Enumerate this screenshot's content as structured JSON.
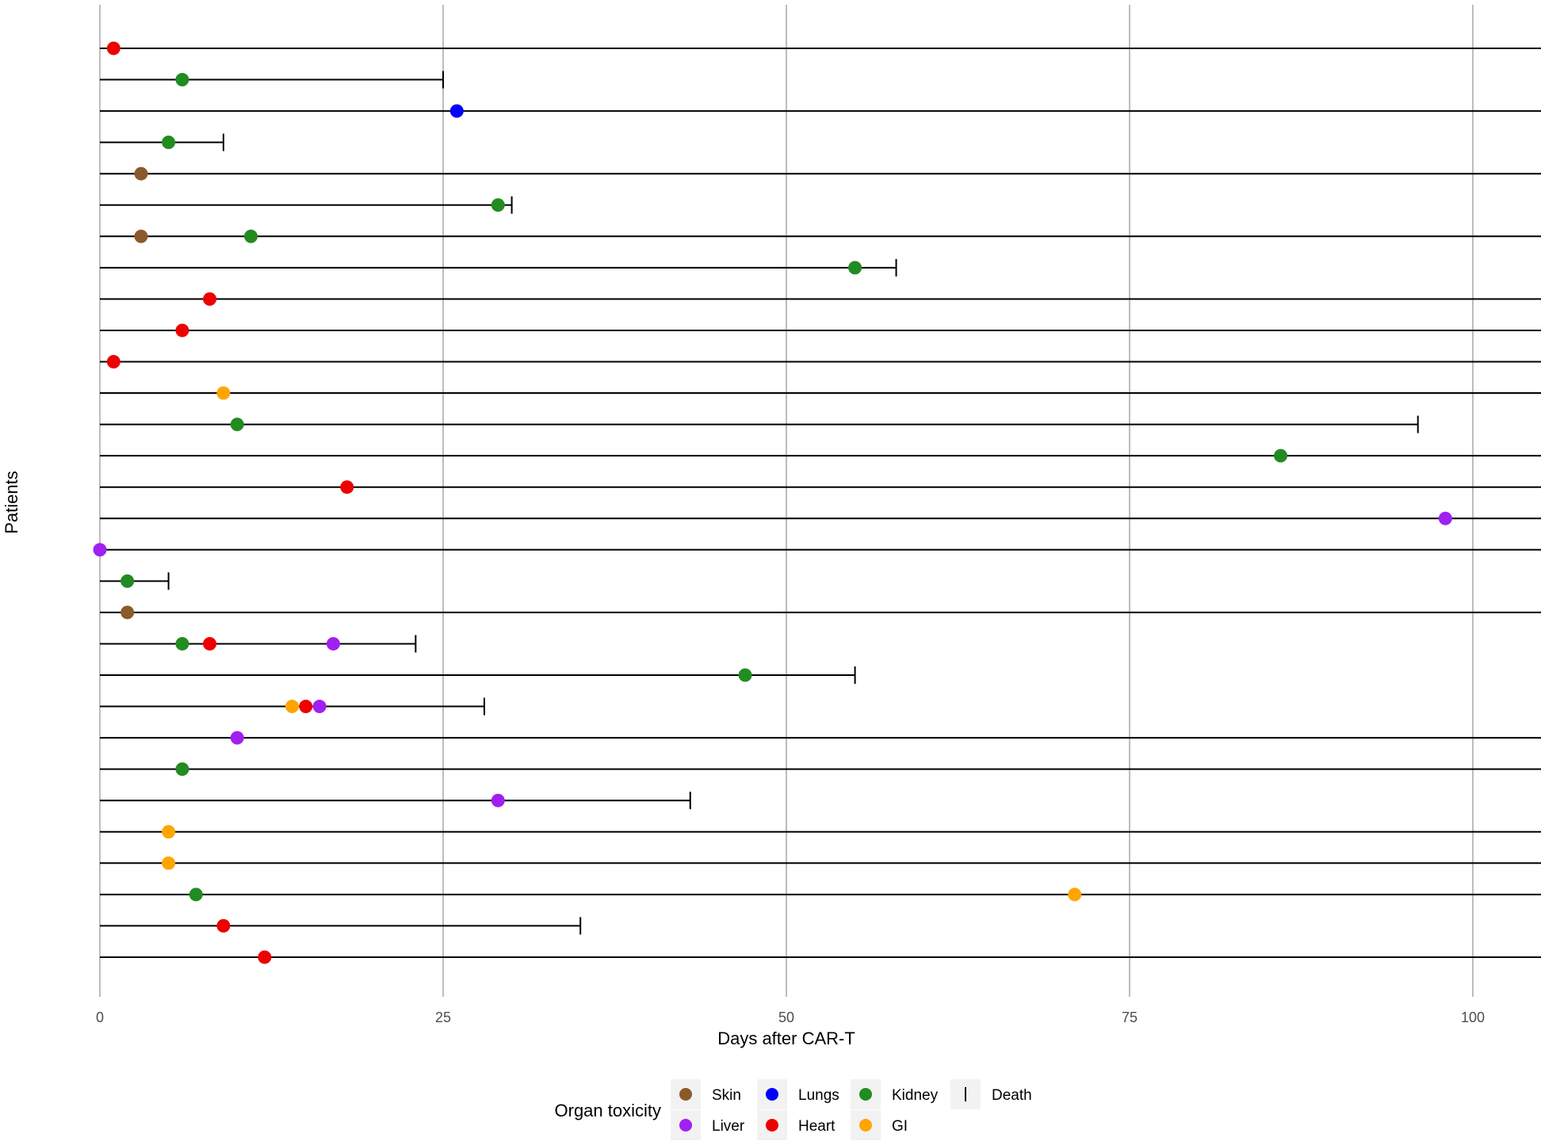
{
  "chart_data": {
    "type": "scatter",
    "title": "",
    "xlabel": "Days after CAR-T",
    "ylabel": "Patients",
    "xlim": [
      0,
      105
    ],
    "x_ticks": [
      0,
      25,
      50,
      75,
      100
    ],
    "grid": "vertical major gridlines",
    "legend": {
      "title": "Organ toxicity",
      "placement": "bottom",
      "entries": [
        {
          "label": "Skin",
          "symbol": "point",
          "color": "#8B5A2B"
        },
        {
          "label": "Lungs",
          "symbol": "point",
          "color": "#0000FF"
        },
        {
          "label": "Kidney",
          "symbol": "point",
          "color": "#228B22"
        },
        {
          "label": "Death",
          "symbol": "bar",
          "color": "#000000"
        },
        {
          "label": "Liver",
          "symbol": "point",
          "color": "#A020F0"
        },
        {
          "label": "Heart",
          "symbol": "point",
          "color": "#EE0000"
        },
        {
          "label": "GI",
          "symbol": "point",
          "color": "#FFA500"
        }
      ]
    },
    "colors": {
      "Skin": "#8B5A2B",
      "Lungs": "#0000FF",
      "Kidney": "#228B22",
      "Liver": "#A020F0",
      "Heart": "#EE0000",
      "GI": "#FFA500"
    },
    "patients": [
      {
        "end": 105,
        "death": false,
        "events": [
          {
            "day": 1,
            "organ": "Heart"
          }
        ]
      },
      {
        "end": 25,
        "death": true,
        "events": [
          {
            "day": 6,
            "organ": "Kidney"
          }
        ]
      },
      {
        "end": 105,
        "death": false,
        "events": [
          {
            "day": 26,
            "organ": "Lungs"
          }
        ]
      },
      {
        "end": 9,
        "death": true,
        "events": [
          {
            "day": 5,
            "organ": "Kidney"
          }
        ]
      },
      {
        "end": 105,
        "death": false,
        "events": [
          {
            "day": 3,
            "organ": "Skin"
          }
        ]
      },
      {
        "end": 30,
        "death": true,
        "events": [
          {
            "day": 29,
            "organ": "Kidney"
          }
        ]
      },
      {
        "end": 105,
        "death": false,
        "events": [
          {
            "day": 3,
            "organ": "Skin"
          },
          {
            "day": 11,
            "organ": "Kidney"
          }
        ]
      },
      {
        "end": 58,
        "death": true,
        "events": [
          {
            "day": 55,
            "organ": "Kidney"
          }
        ]
      },
      {
        "end": 105,
        "death": false,
        "events": [
          {
            "day": 8,
            "organ": "Heart"
          }
        ]
      },
      {
        "end": 105,
        "death": false,
        "events": [
          {
            "day": 6,
            "organ": "Heart"
          }
        ]
      },
      {
        "end": 105,
        "death": false,
        "events": [
          {
            "day": 1,
            "organ": "Heart"
          }
        ]
      },
      {
        "end": 105,
        "death": false,
        "events": [
          {
            "day": 9,
            "organ": "GI"
          }
        ]
      },
      {
        "end": 96,
        "death": true,
        "events": [
          {
            "day": 10,
            "organ": "Kidney"
          }
        ]
      },
      {
        "end": 105,
        "death": false,
        "events": [
          {
            "day": 86,
            "organ": "Kidney"
          }
        ]
      },
      {
        "end": 105,
        "death": false,
        "events": [
          {
            "day": 18,
            "organ": "Heart"
          }
        ]
      },
      {
        "end": 105,
        "death": false,
        "events": [
          {
            "day": 98,
            "organ": "Liver"
          }
        ]
      },
      {
        "end": 105,
        "death": false,
        "events": [
          {
            "day": 0,
            "organ": "Liver"
          }
        ]
      },
      {
        "end": 5,
        "death": true,
        "events": [
          {
            "day": 2,
            "organ": "Kidney"
          }
        ]
      },
      {
        "end": 105,
        "death": false,
        "events": [
          {
            "day": 2,
            "organ": "Skin"
          }
        ]
      },
      {
        "end": 23,
        "death": true,
        "events": [
          {
            "day": 6,
            "organ": "Kidney"
          },
          {
            "day": 8,
            "organ": "Heart"
          },
          {
            "day": 17,
            "organ": "Liver"
          }
        ]
      },
      {
        "end": 55,
        "death": true,
        "events": [
          {
            "day": 47,
            "organ": "Kidney"
          }
        ]
      },
      {
        "end": 28,
        "death": true,
        "events": [
          {
            "day": 14,
            "organ": "GI"
          },
          {
            "day": 15,
            "organ": "Heart"
          },
          {
            "day": 16,
            "organ": "Liver"
          }
        ]
      },
      {
        "end": 105,
        "death": false,
        "events": [
          {
            "day": 10,
            "organ": "Liver"
          }
        ]
      },
      {
        "end": 105,
        "death": false,
        "events": [
          {
            "day": 6,
            "organ": "Kidney"
          }
        ]
      },
      {
        "end": 43,
        "death": true,
        "events": [
          {
            "day": 29,
            "organ": "Liver"
          }
        ]
      },
      {
        "end": 105,
        "death": false,
        "events": [
          {
            "day": 5,
            "organ": "GI"
          }
        ]
      },
      {
        "end": 105,
        "death": false,
        "events": [
          {
            "day": 5,
            "organ": "GI"
          }
        ]
      },
      {
        "end": 105,
        "death": false,
        "events": [
          {
            "day": 7,
            "organ": "Kidney"
          },
          {
            "day": 71,
            "organ": "GI"
          }
        ]
      },
      {
        "end": 35,
        "death": true,
        "events": [
          {
            "day": 9,
            "organ": "Heart"
          }
        ]
      },
      {
        "end": 105,
        "death": false,
        "events": [
          {
            "day": 12,
            "organ": "Heart"
          }
        ]
      }
    ]
  }
}
